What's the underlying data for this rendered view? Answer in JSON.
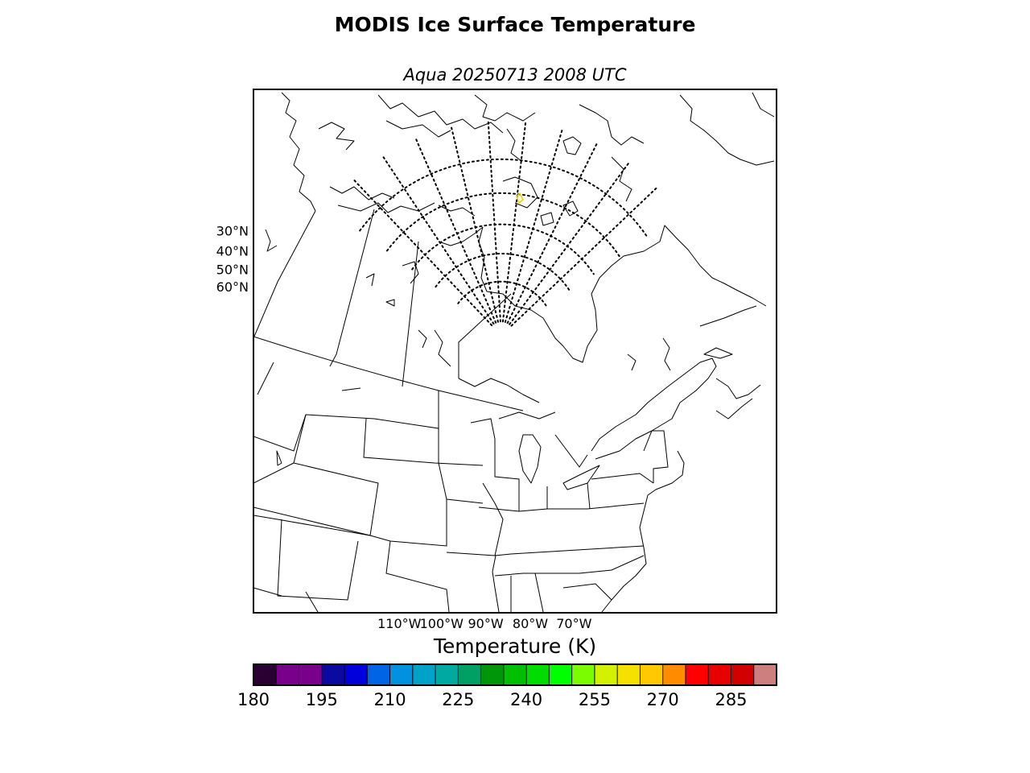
{
  "figure": {
    "title": "MODIS Ice Surface Temperature",
    "subtitle": "Aqua 20250713 2008 UTC"
  },
  "map": {
    "projection": "polar stereographic",
    "lat_labels": [
      {
        "lat": 60,
        "text": "60°N"
      },
      {
        "lat": 50,
        "text": "50°N"
      },
      {
        "lat": 40,
        "text": "40°N"
      },
      {
        "lat": 30,
        "text": "30°N"
      }
    ],
    "lon_labels": [
      {
        "lon": -110,
        "text": "110°W"
      },
      {
        "lon": -100,
        "text": "100°W"
      },
      {
        "lon": -90,
        "text": "90°W"
      },
      {
        "lon": -80,
        "text": "80°W"
      },
      {
        "lon": -70,
        "text": "70°W"
      }
    ],
    "highlight_color": "#f5d000"
  },
  "colorbar": {
    "title": "Temperature (K)",
    "min": 180,
    "max": 295,
    "step": 5,
    "tick_values": [
      180,
      195,
      210,
      225,
      240,
      255,
      270,
      285
    ],
    "tick_labels": [
      "180",
      "195",
      "210",
      "225",
      "240",
      "255",
      "270",
      "285"
    ],
    "colors": [
      "#2a0033",
      "#78008a",
      "#78008a",
      "#0a0aa0",
      "#0000dc",
      "#0064e6",
      "#0091e1",
      "#00a2c8",
      "#00aaa0",
      "#00a064",
      "#00960a",
      "#00be00",
      "#00dc00",
      "#00ff00",
      "#7cfc00",
      "#d2f000",
      "#f5e000",
      "#ffc800",
      "#ff8c00",
      "#ff0000",
      "#e60000",
      "#d20000",
      "#cd7f7f"
    ]
  }
}
